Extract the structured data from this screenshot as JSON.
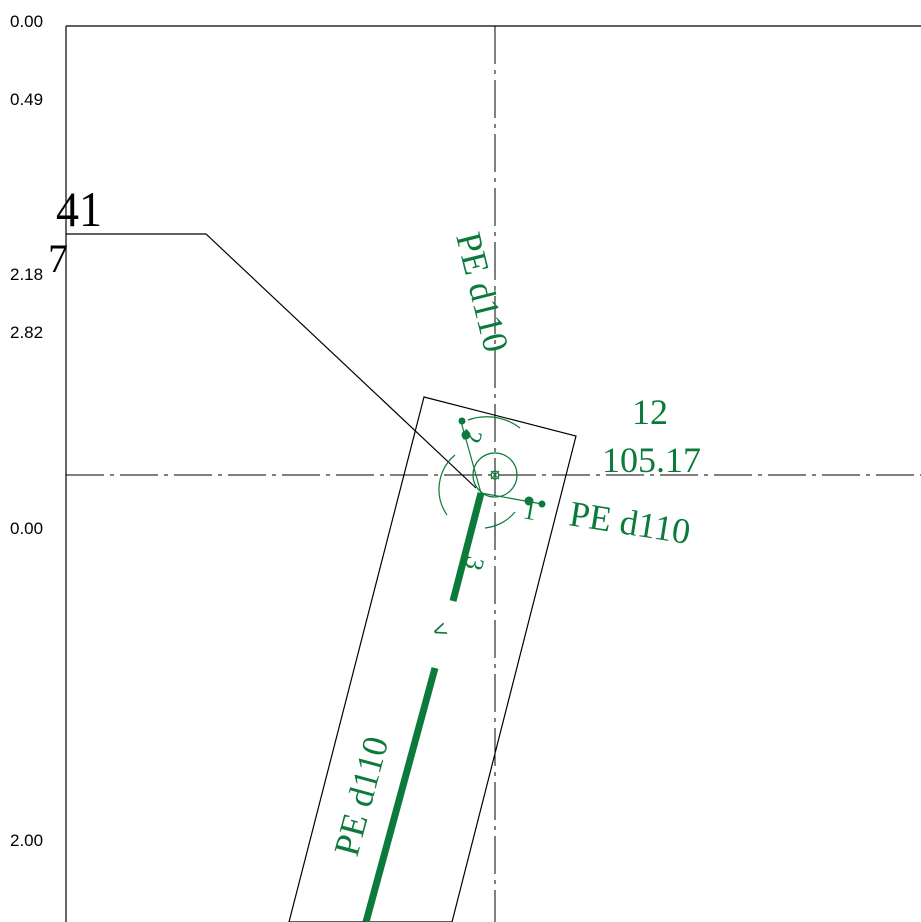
{
  "colors": {
    "pipe": "#0b7a3b",
    "line": "#000000",
    "background": "#ffffff"
  },
  "left_labels": [
    "0.00",
    "0.49",
    "2.18",
    "2.82",
    "0.00",
    "2.00"
  ],
  "partial_labels": {
    "top": "41",
    "bottom": "7"
  },
  "pipe_labels": [
    "PE d110",
    "PE d110",
    "PE d110"
  ],
  "node": {
    "id": "12",
    "elevation": "105.17"
  },
  "branch_numbers": [
    "1",
    "2",
    "3"
  ],
  "direction_marker": "<"
}
